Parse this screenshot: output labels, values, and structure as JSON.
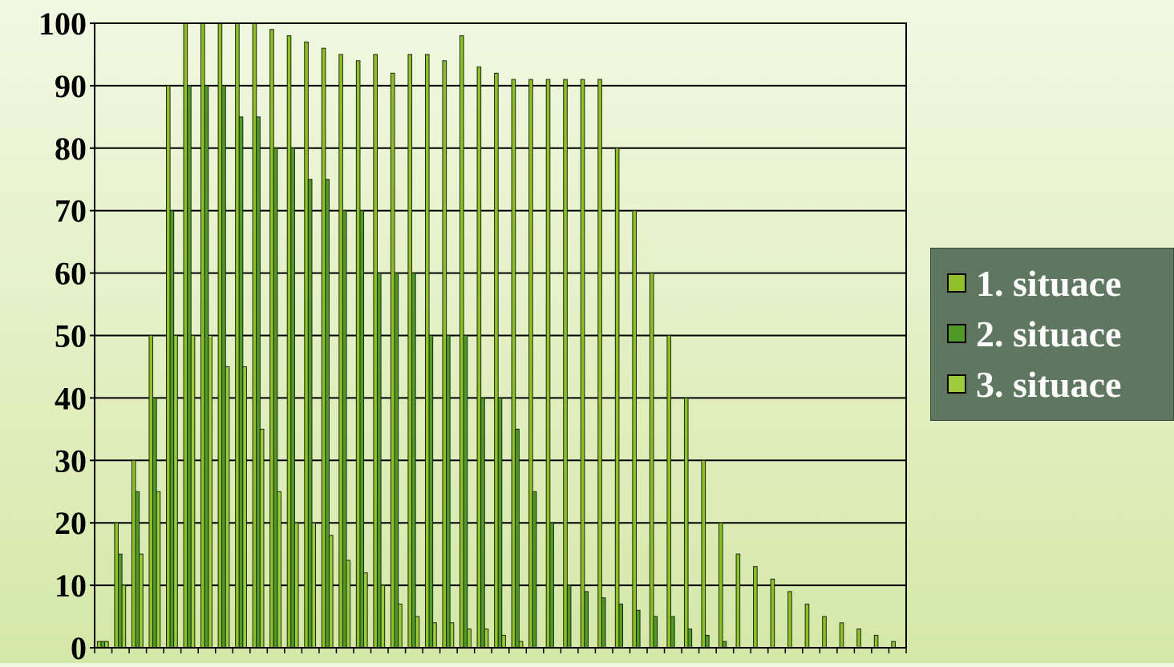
{
  "chart_data": {
    "type": "bar",
    "ylim": [
      0,
      100
    ],
    "y_ticks": [
      "0",
      "10",
      "20",
      "30",
      "40",
      "50",
      "60",
      "70",
      "80",
      "90",
      "100"
    ],
    "grid": "horizontal",
    "legend_position": "right",
    "series": [
      {
        "name": "1. situace",
        "color": "#8fc02a",
        "values": [
          1,
          20,
          30,
          50,
          90,
          100,
          100,
          100,
          100,
          100,
          99,
          98,
          97,
          96,
          95,
          94,
          95,
          92,
          95,
          95,
          94,
          98,
          93,
          92,
          91,
          91,
          91,
          91,
          91,
          91,
          80,
          70,
          60,
          50,
          40,
          30,
          20,
          15,
          13,
          11,
          9,
          7,
          5,
          4,
          3,
          2,
          1
        ]
      },
      {
        "name": "2. situace",
        "color": "#4f9a2a",
        "values": [
          1,
          15,
          25,
          40,
          70,
          90,
          90,
          90,
          85,
          85,
          80,
          80,
          75,
          75,
          70,
          70,
          60,
          60,
          60,
          50,
          50,
          50,
          40,
          40,
          35,
          25,
          20,
          10,
          9,
          8,
          7,
          6,
          5,
          5,
          3,
          2,
          1,
          0,
          0,
          0,
          0,
          0,
          0,
          0,
          0,
          0,
          0
        ]
      },
      {
        "name": "3. situace",
        "color": "#9ccb3e",
        "values": [
          1,
          10,
          15,
          25,
          50,
          50,
          50,
          45,
          45,
          35,
          25,
          20,
          20,
          18,
          14,
          12,
          10,
          7,
          5,
          4,
          4,
          3,
          3,
          2,
          1,
          0,
          0,
          0,
          0,
          0,
          0,
          0,
          0,
          0,
          0,
          0,
          0,
          0,
          0,
          0,
          0,
          0,
          0,
          0,
          0,
          0,
          0
        ]
      }
    ]
  }
}
